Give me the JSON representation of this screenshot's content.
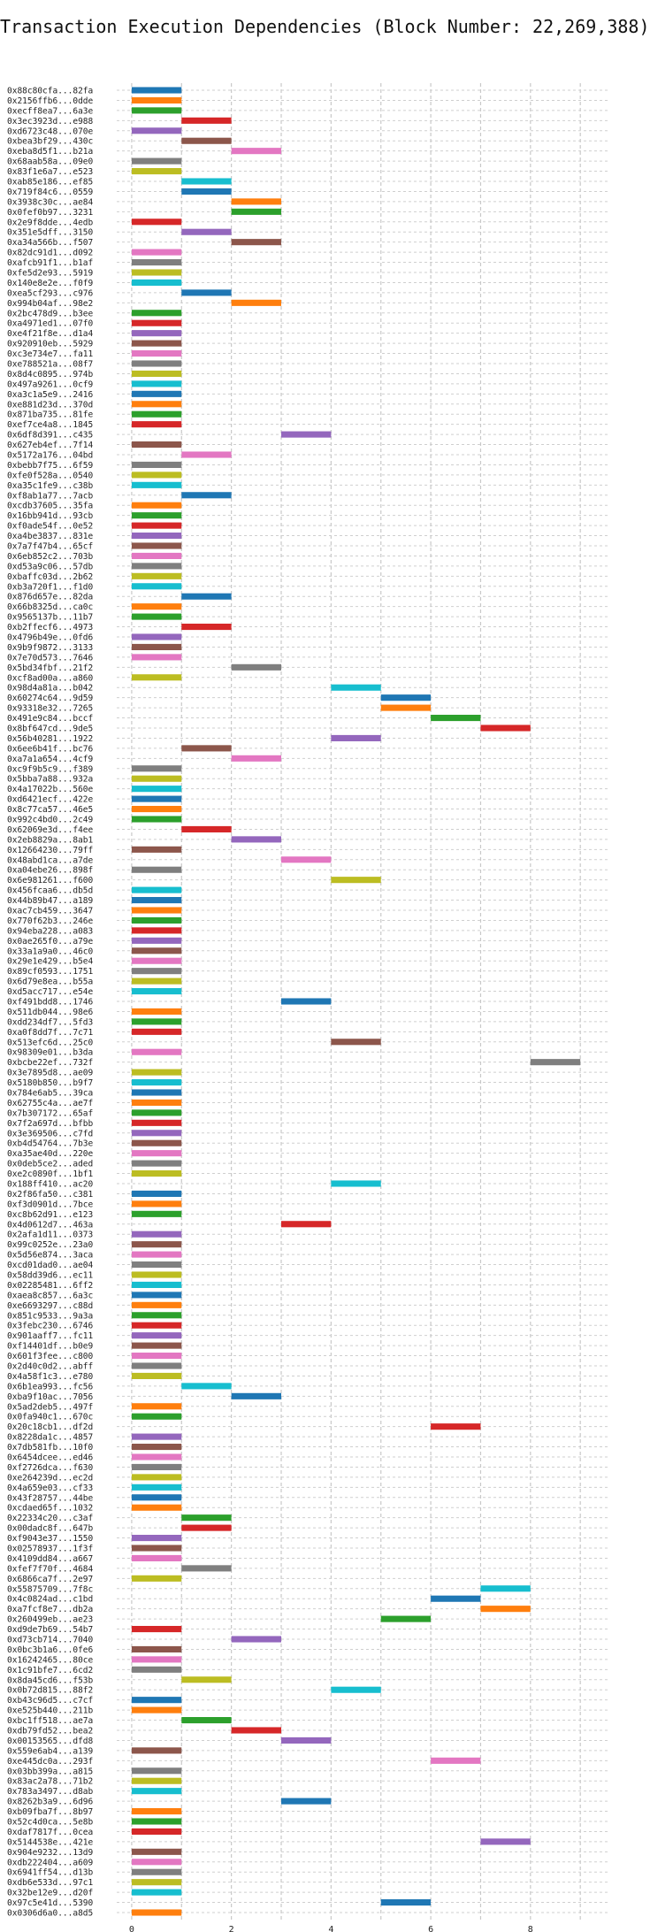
{
  "title": "Transaction Execution Dependencies (Block Number: 22,269,388)",
  "chart_data": {
    "type": "bar",
    "orientation": "horizontal-gantt",
    "grid": true,
    "xlim": [
      -0.3,
      9.6
    ],
    "x_ticks": [
      0,
      2,
      4,
      6,
      8
    ],
    "palette": [
      "#1f77b4",
      "#ff7f0e",
      "#2ca02c",
      "#d62728",
      "#9467bd",
      "#8c564b",
      "#e377c2",
      "#7f7f7f",
      "#bcbd22",
      "#17becf"
    ],
    "rows": [
      {
        "label": "0x88c80cfa...82fa",
        "start": 0,
        "color": 0
      },
      {
        "label": "0x2156ffb6...0dde",
        "start": 0,
        "color": 1
      },
      {
        "label": "0xecff8ea7...6a3e",
        "start": 0,
        "color": 2
      },
      {
        "label": "0x3ec3923d...e988",
        "start": 1,
        "color": 3
      },
      {
        "label": "0xd6723c48...070e",
        "start": 0,
        "color": 4
      },
      {
        "label": "0xbea3bf29...430c",
        "start": 1,
        "color": 5
      },
      {
        "label": "0xeba8d5f1...b21a",
        "start": 2,
        "color": 6
      },
      {
        "label": "0x68aab58a...09e0",
        "start": 0,
        "color": 7
      },
      {
        "label": "0x83f1e6a7...e523",
        "start": 0,
        "color": 8
      },
      {
        "label": "0xab85e186...ef85",
        "start": 1,
        "color": 9
      },
      {
        "label": "0x719f84c6...0559",
        "start": 1,
        "color": 0
      },
      {
        "label": "0x3938c30c...ae84",
        "start": 2,
        "color": 1
      },
      {
        "label": "0x0fef0b97...3231",
        "start": 2,
        "color": 2
      },
      {
        "label": "0x2e9f8dde...4edb",
        "start": 0,
        "color": 3
      },
      {
        "label": "0x351e5dff...3150",
        "start": 1,
        "color": 4
      },
      {
        "label": "0xa34a566b...f507",
        "start": 2,
        "color": 5
      },
      {
        "label": "0x82dc91d1...d092",
        "start": 0,
        "color": 6
      },
      {
        "label": "0xafcb91f1...b1af",
        "start": 0,
        "color": 7
      },
      {
        "label": "0xfe5d2e93...5919",
        "start": 0,
        "color": 8
      },
      {
        "label": "0x140e8e2e...f0f9",
        "start": 0,
        "color": 9
      },
      {
        "label": "0xea5cf293...c976",
        "start": 1,
        "color": 0
      },
      {
        "label": "0x994b04af...98e2",
        "start": 2,
        "color": 1
      },
      {
        "label": "0x2bc478d9...b3ee",
        "start": 0,
        "color": 2
      },
      {
        "label": "0xa4971ed1...07f0",
        "start": 0,
        "color": 3
      },
      {
        "label": "0xe4f21f8e...d1a4",
        "start": 0,
        "color": 4
      },
      {
        "label": "0x920910eb...5929",
        "start": 0,
        "color": 5
      },
      {
        "label": "0xc3e734e7...fa11",
        "start": 0,
        "color": 6
      },
      {
        "label": "0xe788521a...08f7",
        "start": 0,
        "color": 7
      },
      {
        "label": "0x8d4c0895...974b",
        "start": 0,
        "color": 8
      },
      {
        "label": "0x497a9261...0cf9",
        "start": 0,
        "color": 9
      },
      {
        "label": "0xa3c1a5e9...2416",
        "start": 0,
        "color": 0
      },
      {
        "label": "0xe881d23d...370d",
        "start": 0,
        "color": 1
      },
      {
        "label": "0x871ba735...81fe",
        "start": 0,
        "color": 2
      },
      {
        "label": "0xef7ce4a8...1845",
        "start": 0,
        "color": 3
      },
      {
        "label": "0x6df8d391...c435",
        "start": 3,
        "color": 4
      },
      {
        "label": "0x627eb4ef...7f14",
        "start": 0,
        "color": 5
      },
      {
        "label": "0x5172a176...04bd",
        "start": 1,
        "color": 6
      },
      {
        "label": "0xbebb7f75...6f59",
        "start": 0,
        "color": 7
      },
      {
        "label": "0xfe0f528a...0540",
        "start": 0,
        "color": 8
      },
      {
        "label": "0xa35c1fe9...c38b",
        "start": 0,
        "color": 9
      },
      {
        "label": "0xf8ab1a77...7acb",
        "start": 1,
        "color": 0
      },
      {
        "label": "0xcdb37605...35fa",
        "start": 0,
        "color": 1
      },
      {
        "label": "0x16bb941d...93cb",
        "start": 0,
        "color": 2
      },
      {
        "label": "0xf0ade54f...0e52",
        "start": 0,
        "color": 3
      },
      {
        "label": "0xa4be3837...831e",
        "start": 0,
        "color": 4
      },
      {
        "label": "0x7a7f47b4...65cf",
        "start": 0,
        "color": 5
      },
      {
        "label": "0x6eb852c2...703b",
        "start": 0,
        "color": 6
      },
      {
        "label": "0xd53a9c06...57db",
        "start": 0,
        "color": 7
      },
      {
        "label": "0xbaffc03d...2b62",
        "start": 0,
        "color": 8
      },
      {
        "label": "0xb3a720f1...f1d0",
        "start": 0,
        "color": 9
      },
      {
        "label": "0x876d657e...82da",
        "start": 1,
        "color": 0
      },
      {
        "label": "0x66b8325d...ca0c",
        "start": 0,
        "color": 1
      },
      {
        "label": "0x9565137b...11b7",
        "start": 0,
        "color": 2
      },
      {
        "label": "0xb2ffecf6...4973",
        "start": 1,
        "color": 3
      },
      {
        "label": "0x4796b49e...0fd6",
        "start": 0,
        "color": 4
      },
      {
        "label": "0x9b9f9872...3133",
        "start": 0,
        "color": 5
      },
      {
        "label": "0x7e70d573...7646",
        "start": 0,
        "color": 6
      },
      {
        "label": "0x5bd34fbf...21f2",
        "start": 2,
        "color": 7
      },
      {
        "label": "0xcf8ad00a...a860",
        "start": 0,
        "color": 8
      },
      {
        "label": "0x98d4a81a...b042",
        "start": 4,
        "color": 9
      },
      {
        "label": "0x60274c64...9d59",
        "start": 5,
        "color": 0
      },
      {
        "label": "0x93318e32...7265",
        "start": 5,
        "color": 1
      },
      {
        "label": "0x491e9c84...bccf",
        "start": 6,
        "color": 2
      },
      {
        "label": "0x8bf647cd...9de5",
        "start": 7,
        "color": 3
      },
      {
        "label": "0x56b40281...1922",
        "start": 4,
        "color": 4
      },
      {
        "label": "0x6ee6b41f...bc76",
        "start": 1,
        "color": 5
      },
      {
        "label": "0xa7a1a654...4cf9",
        "start": 2,
        "color": 6
      },
      {
        "label": "0xc9f9b5c9...f389",
        "start": 0,
        "color": 7
      },
      {
        "label": "0x5bba7a88...932a",
        "start": 0,
        "color": 8
      },
      {
        "label": "0x4a17022b...560e",
        "start": 0,
        "color": 9
      },
      {
        "label": "0xd6421ecf...422e",
        "start": 0,
        "color": 0
      },
      {
        "label": "0x8c77ca57...46e5",
        "start": 0,
        "color": 1
      },
      {
        "label": "0x992c4bd0...2c49",
        "start": 0,
        "color": 2
      },
      {
        "label": "0x62069e3d...f4ee",
        "start": 1,
        "color": 3
      },
      {
        "label": "0x2eb8829a...8ab1",
        "start": 2,
        "color": 4
      },
      {
        "label": "0x12664230...79ff",
        "start": 0,
        "color": 5
      },
      {
        "label": "0x48abd1ca...a7de",
        "start": 3,
        "color": 6
      },
      {
        "label": "0xa04ebe26...898f",
        "start": 0,
        "color": 7
      },
      {
        "label": "0x6e981261...f600",
        "start": 4,
        "color": 8
      },
      {
        "label": "0x456fcaa6...db5d",
        "start": 0,
        "color": 9
      },
      {
        "label": "0x44b89b47...a189",
        "start": 0,
        "color": 0
      },
      {
        "label": "0xac7cb459...3647",
        "start": 0,
        "color": 1
      },
      {
        "label": "0x770f62b3...246e",
        "start": 0,
        "color": 2
      },
      {
        "label": "0x94eba228...a083",
        "start": 0,
        "color": 3
      },
      {
        "label": "0x0ae265f0...a79e",
        "start": 0,
        "color": 4
      },
      {
        "label": "0x33a1a9a0...46c0",
        "start": 0,
        "color": 5
      },
      {
        "label": "0x29e1e429...b5e4",
        "start": 0,
        "color": 6
      },
      {
        "label": "0x89cf0593...1751",
        "start": 0,
        "color": 7
      },
      {
        "label": "0x6d79e8ea...b55a",
        "start": 0,
        "color": 8
      },
      {
        "label": "0xd5acc717...e54e",
        "start": 0,
        "color": 9
      },
      {
        "label": "0xf491bdd8...1746",
        "start": 3,
        "color": 0
      },
      {
        "label": "0x511db044...98e6",
        "start": 0,
        "color": 1
      },
      {
        "label": "0xdd234df7...5fd3",
        "start": 0,
        "color": 2
      },
      {
        "label": "0xa0f8dd7f...7c71",
        "start": 0,
        "color": 3
      },
      {
        "label": "0x513efc6d...25c0",
        "start": 4,
        "color": 5
      },
      {
        "label": "0x98309e01...b3da",
        "start": 0,
        "color": 6
      },
      {
        "label": "0xbcbe22ef...732f",
        "start": 8,
        "color": 7
      },
      {
        "label": "0x3e7895d8...ae09",
        "start": 0,
        "color": 8
      },
      {
        "label": "0x5180b850...b9f7",
        "start": 0,
        "color": 9
      },
      {
        "label": "0x784e6ab5...39ca",
        "start": 0,
        "color": 0
      },
      {
        "label": "0x62755c4a...ae7f",
        "start": 0,
        "color": 1
      },
      {
        "label": "0x7b307172...65af",
        "start": 0,
        "color": 2
      },
      {
        "label": "0x7f2a697d...bfbb",
        "start": 0,
        "color": 3
      },
      {
        "label": "0x3e369506...c7fd",
        "start": 0,
        "color": 4
      },
      {
        "label": "0xb4d54764...7b3e",
        "start": 0,
        "color": 5
      },
      {
        "label": "0xa35ae40d...220e",
        "start": 0,
        "color": 6
      },
      {
        "label": "0x0deb5ce2...aded",
        "start": 0,
        "color": 7
      },
      {
        "label": "0xe2c0890f...1bf1",
        "start": 0,
        "color": 8
      },
      {
        "label": "0x188ff410...ac20",
        "start": 4,
        "color": 9
      },
      {
        "label": "0x2f86fa50...c381",
        "start": 0,
        "color": 0
      },
      {
        "label": "0xf3d0901d...7bce",
        "start": 0,
        "color": 1
      },
      {
        "label": "0xc8b62d91...e123",
        "start": 0,
        "color": 2
      },
      {
        "label": "0x4d0612d7...463a",
        "start": 3,
        "color": 3
      },
      {
        "label": "0x2afa1d11...0373",
        "start": 0,
        "color": 4
      },
      {
        "label": "0x99c0252e...23a0",
        "start": 0,
        "color": 5
      },
      {
        "label": "0x5d56e874...3aca",
        "start": 0,
        "color": 6
      },
      {
        "label": "0xcd01dad0...ae04",
        "start": 0,
        "color": 7
      },
      {
        "label": "0x58dd39d6...ec11",
        "start": 0,
        "color": 8
      },
      {
        "label": "0x02285481...6ff2",
        "start": 0,
        "color": 9
      },
      {
        "label": "0xaea8c857...6a3c",
        "start": 0,
        "color": 0
      },
      {
        "label": "0xe6693297...c88d",
        "start": 0,
        "color": 1
      },
      {
        "label": "0x851c9533...9a3a",
        "start": 0,
        "color": 2
      },
      {
        "label": "0x3febc230...6746",
        "start": 0,
        "color": 3
      },
      {
        "label": "0x901aaff7...fc11",
        "start": 0,
        "color": 4
      },
      {
        "label": "0xf14401df...b0e9",
        "start": 0,
        "color": 5
      },
      {
        "label": "0x601f3fee...c800",
        "start": 0,
        "color": 6
      },
      {
        "label": "0x2d40c0d2...abff",
        "start": 0,
        "color": 7
      },
      {
        "label": "0x4a58f1c3...e780",
        "start": 0,
        "color": 8
      },
      {
        "label": "0x6b1ea993...fc56",
        "start": 1,
        "color": 9
      },
      {
        "label": "0xba9f10ac...7056",
        "start": 2,
        "color": 0
      },
      {
        "label": "0x5ad2deb5...497f",
        "start": 0,
        "color": 1
      },
      {
        "label": "0x0fa940c1...670c",
        "start": 0,
        "color": 2
      },
      {
        "label": "0x20c18cb1...df2d",
        "start": 6,
        "color": 3
      },
      {
        "label": "0x8228da1c...4857",
        "start": 0,
        "color": 4
      },
      {
        "label": "0x7db581fb...10f0",
        "start": 0,
        "color": 5
      },
      {
        "label": "0x6454dcee...ed46",
        "start": 0,
        "color": 6
      },
      {
        "label": "0xf2726dca...f630",
        "start": 0,
        "color": 7
      },
      {
        "label": "0xe264239d...ec2d",
        "start": 0,
        "color": 8
      },
      {
        "label": "0x4a659e03...cf33",
        "start": 0,
        "color": 9
      },
      {
        "label": "0x43f28757...44be",
        "start": 0,
        "color": 0
      },
      {
        "label": "0xcdaed65f...1032",
        "start": 0,
        "color": 1
      },
      {
        "label": "0x22334c20...c3af",
        "start": 1,
        "color": 2
      },
      {
        "label": "0x00dadc8f...647b",
        "start": 1,
        "color": 3
      },
      {
        "label": "0xf9043e37...1550",
        "start": 0,
        "color": 4
      },
      {
        "label": "0x02578937...1f3f",
        "start": 0,
        "color": 5
      },
      {
        "label": "0x4109dd84...a667",
        "start": 0,
        "color": 6
      },
      {
        "label": "0xfef7f70f...4684",
        "start": 1,
        "color": 7
      },
      {
        "label": "0x6866ca7f...2e97",
        "start": 0,
        "color": 8
      },
      {
        "label": "0x55875709...7f8c",
        "start": 7,
        "color": 9
      },
      {
        "label": "0x4c0824ad...c1bd",
        "start": 6,
        "color": 0
      },
      {
        "label": "0xa7fcf8e7...db2a",
        "start": 7,
        "color": 1
      },
      {
        "label": "0x260499eb...ae23",
        "start": 5,
        "color": 2
      },
      {
        "label": "0xd9de7b69...54b7",
        "start": 0,
        "color": 3
      },
      {
        "label": "0xd73cb714...7040",
        "start": 2,
        "color": 4
      },
      {
        "label": "0x0bc3b1a6...0fe6",
        "start": 0,
        "color": 5
      },
      {
        "label": "0x16242465...80ce",
        "start": 0,
        "color": 6
      },
      {
        "label": "0x1c91bfe7...6cd2",
        "start": 0,
        "color": 7
      },
      {
        "label": "0x8da45cd6...f53b",
        "start": 1,
        "color": 8
      },
      {
        "label": "0x0b72d815...88f2",
        "start": 4,
        "color": 9
      },
      {
        "label": "0xb43c96d5...c7cf",
        "start": 0,
        "color": 0
      },
      {
        "label": "0xe525b440...211b",
        "start": 0,
        "color": 1
      },
      {
        "label": "0xbc1ff518...ae7a",
        "start": 1,
        "color": 2
      },
      {
        "label": "0xdb79fd52...bea2",
        "start": 2,
        "color": 3
      },
      {
        "label": "0x00153565...dfd8",
        "start": 3,
        "color": 4
      },
      {
        "label": "0x559e6ab4...a139",
        "start": 0,
        "color": 5
      },
      {
        "label": "0xe445dc0a...293f",
        "start": 6,
        "color": 6
      },
      {
        "label": "0x03bb399a...a815",
        "start": 0,
        "color": 7
      },
      {
        "label": "0x83ac2a78...71b2",
        "start": 0,
        "color": 8
      },
      {
        "label": "0x783a3497...d8ab",
        "start": 0,
        "color": 9
      },
      {
        "label": "0x8262b3a9...6d96",
        "start": 3,
        "color": 0
      },
      {
        "label": "0xb09fba7f...8b97",
        "start": 0,
        "color": 1
      },
      {
        "label": "0x52c4d0ca...5e8b",
        "start": 0,
        "color": 2
      },
      {
        "label": "0xdaf7817f...0cea",
        "start": 0,
        "color": 3
      },
      {
        "label": "0x5144538e...421e",
        "start": 7,
        "color": 4
      },
      {
        "label": "0x904e9232...13d9",
        "start": 0,
        "color": 5
      },
      {
        "label": "0xdb222404...a609",
        "start": 0,
        "color": 6
      },
      {
        "label": "0x6941ff54...d13b",
        "start": 0,
        "color": 7
      },
      {
        "label": "0xdb6e533d...97c1",
        "start": 0,
        "color": 8
      },
      {
        "label": "0x32be12e9...d20f",
        "start": 0,
        "color": 9
      },
      {
        "label": "0x97c5e41d...5390",
        "start": 5,
        "color": 0
      },
      {
        "label": "0x0306d6a0...a8d5",
        "start": 0,
        "color": 1
      }
    ]
  }
}
